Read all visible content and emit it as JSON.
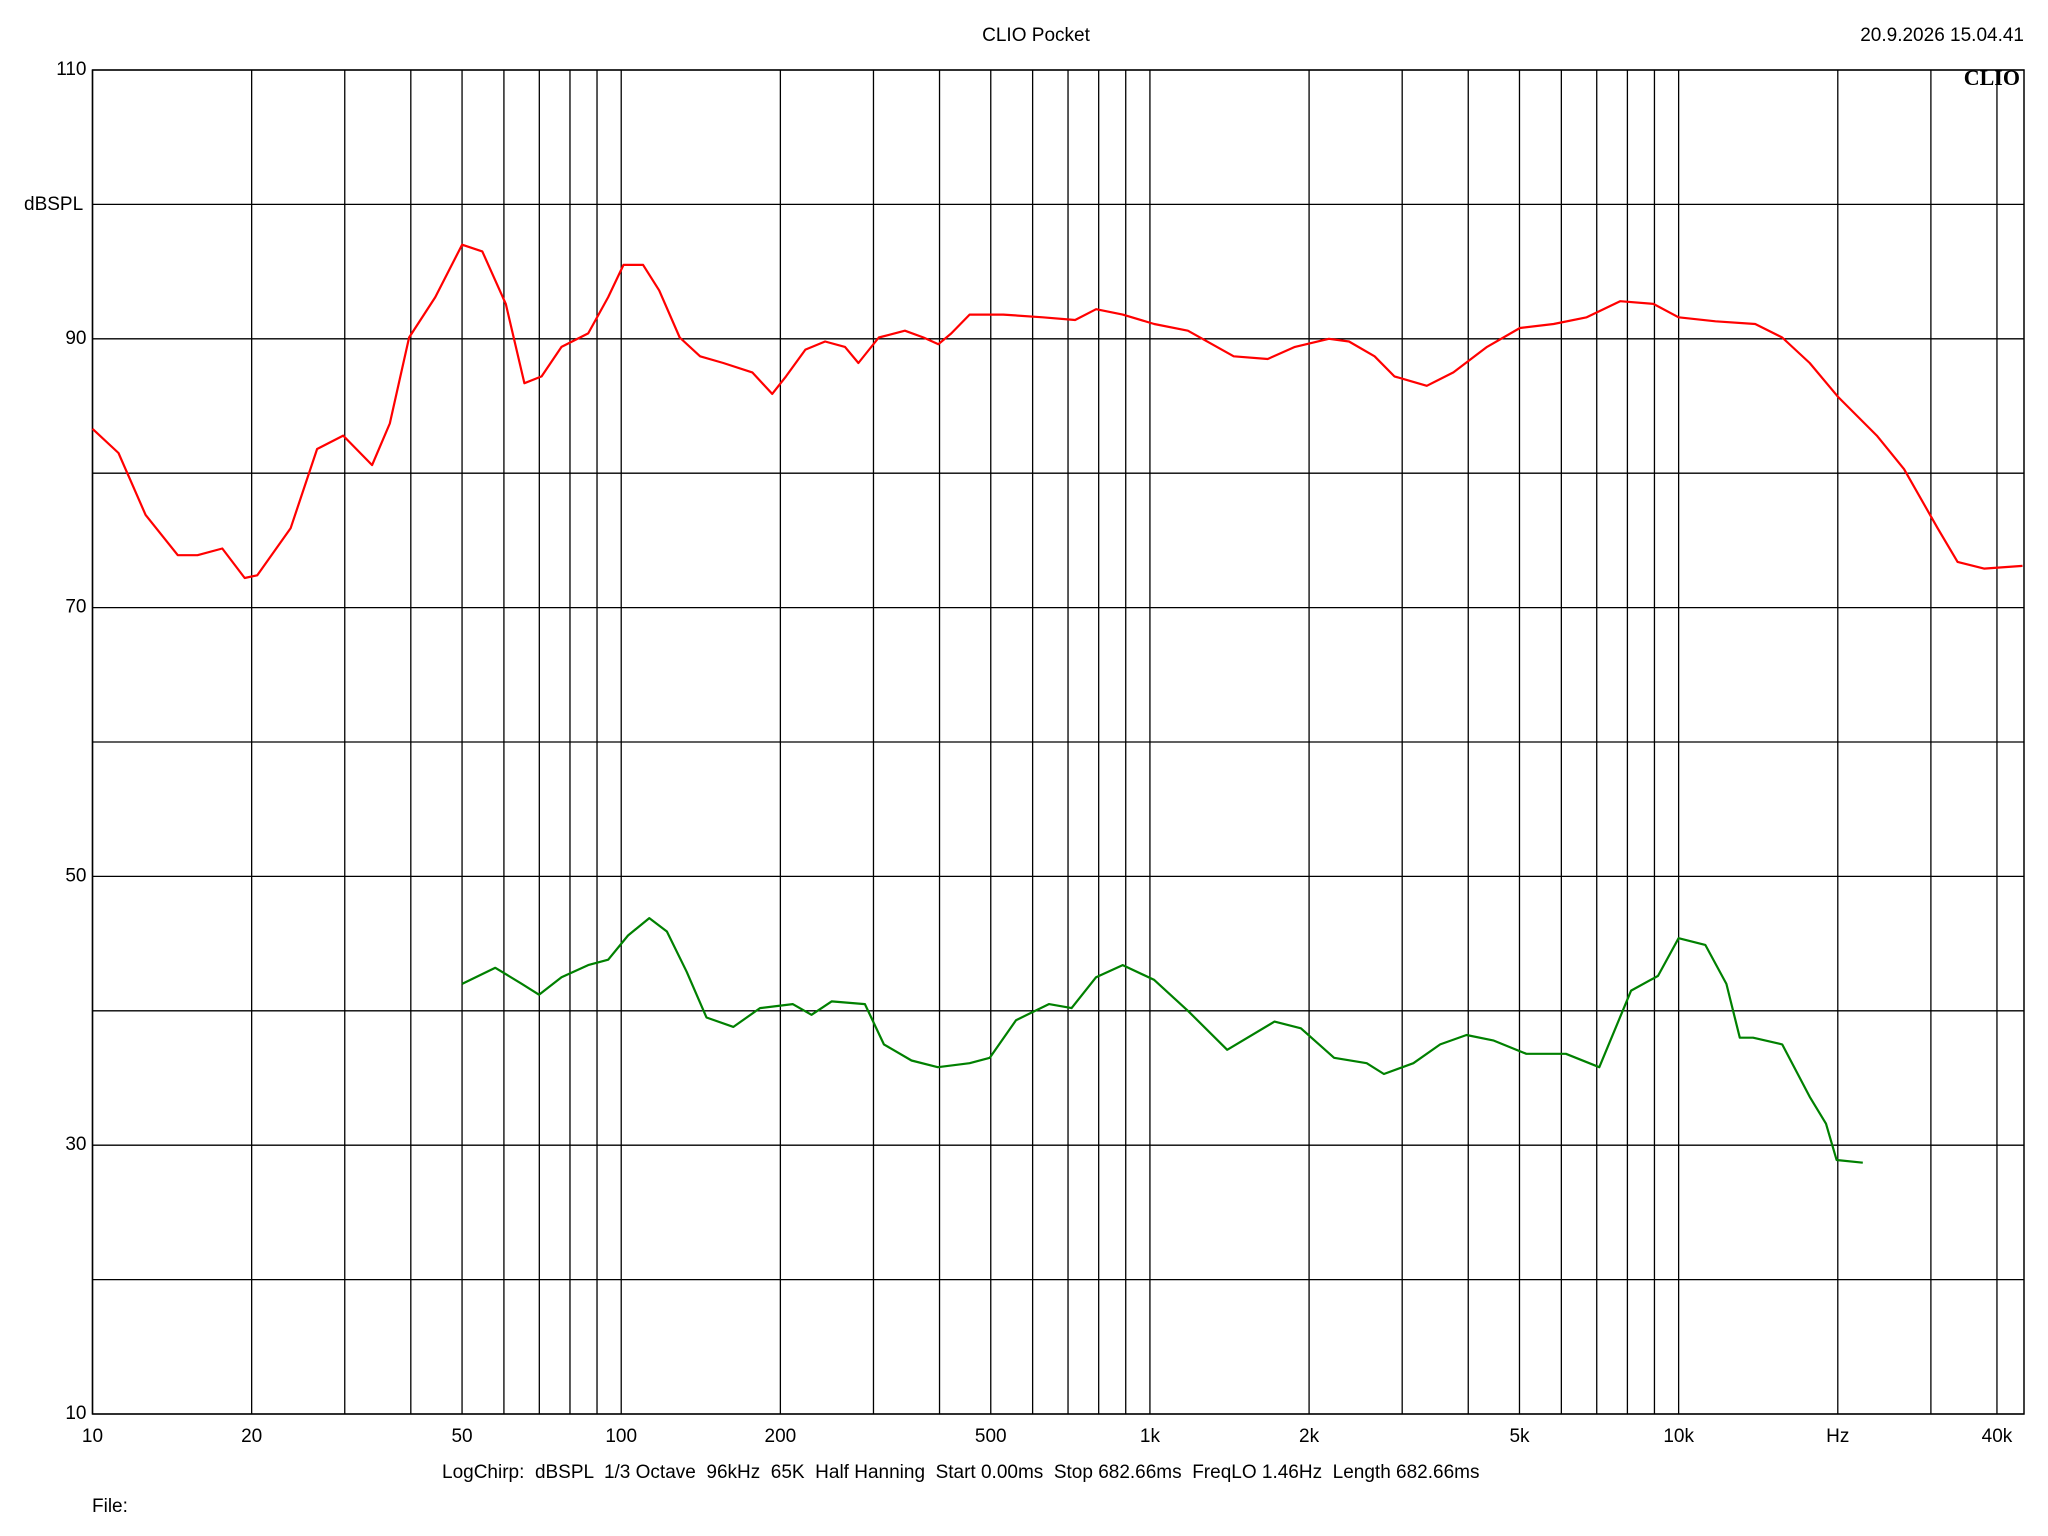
{
  "chart_data": {
    "type": "line",
    "title": "CLIO Pocket",
    "timestamp": "20.9.2026 15.04.41",
    "logo": "CLIO",
    "ylabel": "dBSPL",
    "footer": "LogChirp:  dBSPL  1/3 Octave  96kHz  65K  Half Hanning  Start 0.00ms  Stop 682.66ms  FreqLO 1.46Hz  Length 682.66ms",
    "file_label": "File:",
    "xscale": "log",
    "grid": true,
    "xlim": [
      10,
      45000
    ],
    "ylim": [
      10,
      110
    ],
    "xticks": [
      10,
      20,
      50,
      100,
      200,
      500,
      {
        "value": 1000,
        "label": "1k"
      },
      {
        "value": 2000,
        "label": "2k"
      },
      {
        "value": 5000,
        "label": "5k"
      },
      {
        "value": 10000,
        "label": "10k"
      },
      {
        "value": 20000,
        "label": "Hz"
      },
      {
        "value": 40000,
        "label": "40k"
      }
    ],
    "xgrid": [
      30,
      40,
      60,
      70,
      80,
      90,
      300,
      400,
      600,
      700,
      800,
      900,
      3000,
      4000,
      6000,
      7000,
      8000,
      9000,
      30000
    ],
    "yticks": [
      10,
      30,
      50,
      70,
      90,
      110
    ],
    "ygrid": [
      20,
      40,
      60,
      80,
      100
    ],
    "series": [
      {
        "color": "#ff0000",
        "x": [
          10,
          11.2,
          12.6,
          14.5,
          15.8,
          17.6,
          19.4,
          20.5,
          23.7,
          26.6,
          29.8,
          33.8,
          36.5,
          39.7,
          44.5,
          50,
          54.6,
          60.5,
          65.6,
          70.7,
          77.1,
          86.6,
          94.5,
          101,
          110,
          118,
          129,
          141,
          156,
          177,
          193,
          205,
          223,
          243,
          265,
          281,
          307,
          344,
          373,
          398,
          421,
          456,
          528,
          627,
          722,
          791,
          888,
          1019,
          1180,
          1440,
          1670,
          1880,
          2180,
          2380,
          2660,
          2900,
          3340,
          3750,
          4340,
          5010,
          5800,
          6700,
          7750,
          8960,
          10000,
          11740,
          13960,
          15700,
          17700,
          20000,
          23700,
          26700,
          30900,
          33700,
          37800,
          44700
        ],
        "values": [
          83.3,
          81.5,
          76.9,
          73.9,
          73.9,
          74.4,
          72.2,
          72.4,
          75.9,
          81.8,
          82.8,
          80.6,
          83.7,
          90.1,
          93.1,
          97.0,
          96.5,
          92.6,
          86.7,
          87.2,
          89.4,
          90.4,
          93.1,
          95.5,
          95.5,
          93.6,
          90.1,
          88.7,
          88.2,
          87.5,
          85.9,
          87.2,
          89.2,
          89.8,
          89.4,
          88.2,
          90.1,
          90.6,
          90.1,
          89.6,
          90.4,
          91.8,
          91.8,
          91.6,
          91.4,
          92.2,
          91.8,
          91.1,
          90.6,
          88.7,
          88.5,
          89.4,
          90.0,
          89.8,
          88.7,
          87.2,
          86.5,
          87.5,
          89.4,
          90.8,
          91.1,
          91.6,
          92.8,
          92.6,
          91.6,
          91.3,
          91.1,
          90.1,
          88.2,
          85.7,
          82.8,
          80.3,
          75.9,
          73.4,
          72.9,
          73.1
        ]
      },
      {
        "color": "#008000",
        "x": [
          50,
          57.8,
          64.9,
          69.9,
          77.1,
          86.6,
          94.5,
          103,
          113,
          122,
          133,
          145,
          163,
          183,
          211,
          229,
          250,
          289,
          314,
          354,
          397,
          456,
          498,
          558,
          644,
          711,
          791,
          888,
          1019,
          1180,
          1400,
          1720,
          1930,
          2230,
          2570,
          2770,
          3150,
          3540,
          3970,
          4460,
          5150,
          6120,
          7080,
          8130,
          9140,
          10000,
          11230,
          12310,
          13050,
          13830,
          15700,
          17700,
          19000,
          19900,
          22300
        ],
        "values": [
          42.0,
          43.2,
          42.0,
          41.2,
          42.5,
          43.4,
          43.8,
          45.6,
          46.9,
          45.9,
          42.9,
          39.5,
          38.8,
          40.2,
          40.5,
          39.7,
          40.7,
          40.5,
          37.5,
          36.3,
          35.8,
          36.1,
          36.5,
          39.3,
          40.5,
          40.2,
          42.5,
          43.4,
          42.3,
          40.0,
          37.1,
          39.2,
          38.7,
          36.5,
          36.1,
          35.3,
          36.1,
          37.5,
          38.2,
          37.8,
          36.8,
          36.8,
          35.8,
          41.5,
          42.6,
          45.4,
          44.9,
          42.0,
          38.0,
          38.0,
          37.5,
          33.6,
          31.6,
          28.9,
          28.7
        ]
      }
    ]
  }
}
